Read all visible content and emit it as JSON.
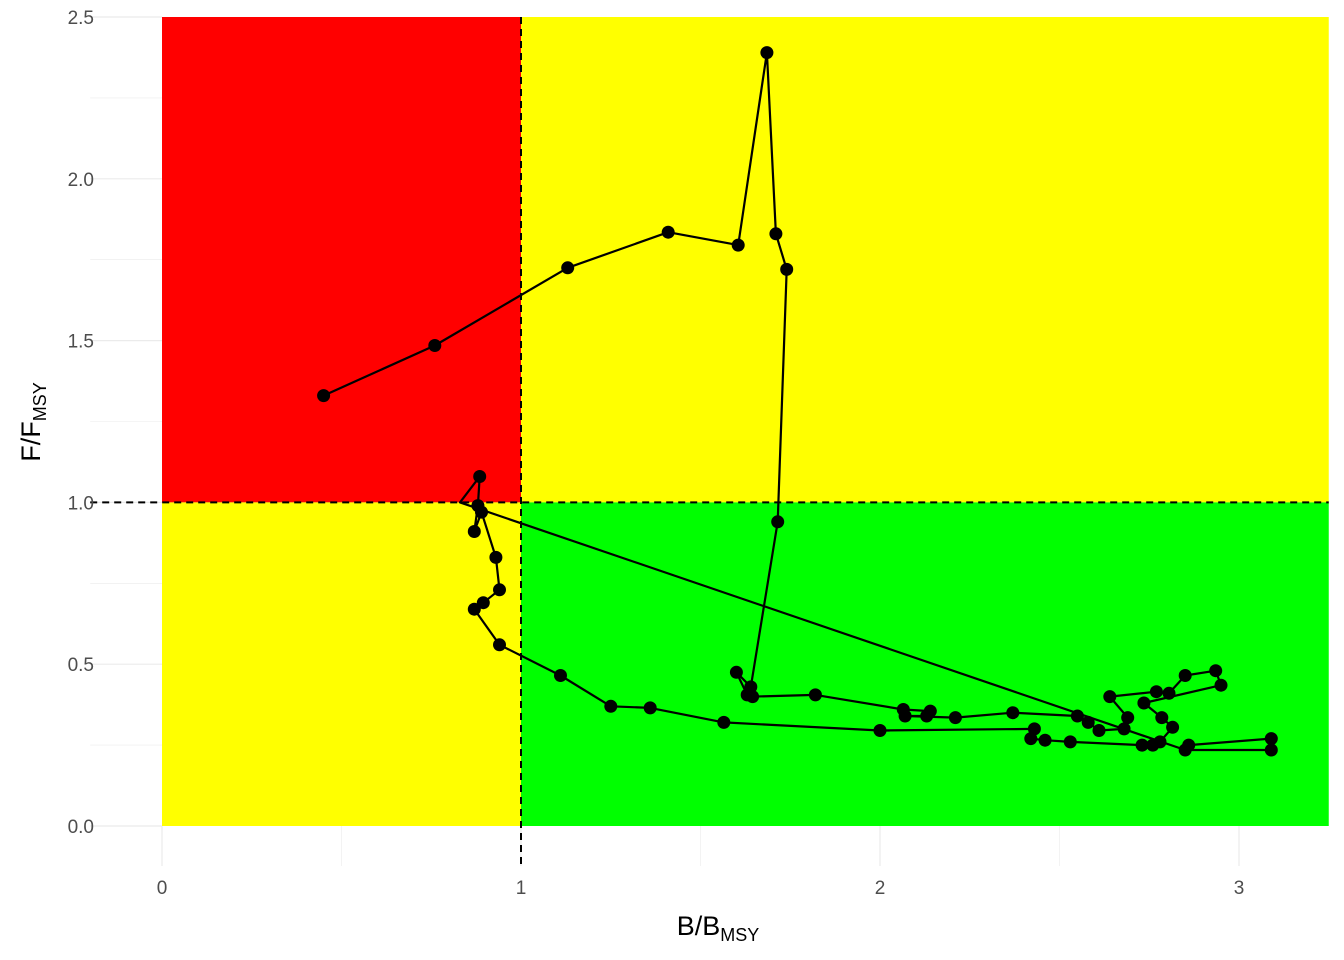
{
  "chart_data": {
    "type": "line",
    "title": "",
    "xlabel": {
      "main": "B/B",
      "sub": "MSY"
    },
    "ylabel": {
      "main": "F/F",
      "sub": "MSY"
    },
    "xlim": [
      -0.2,
      3.25
    ],
    "ylim": [
      0,
      2.5
    ],
    "xticks": [
      0,
      1,
      2,
      3
    ],
    "xtick_labels": [
      "0",
      "1",
      "2",
      "3"
    ],
    "yticks": [
      0,
      0.5,
      1,
      1.5,
      2,
      2.5
    ],
    "ytick_labels": [
      "0.0",
      "0.5",
      "1.0",
      "1.5",
      "2.0",
      "2.5"
    ],
    "reference_lines": {
      "x": 1,
      "y": 1,
      "style": "dashed"
    },
    "quadrants": [
      {
        "name": "overfished-and-overfishing",
        "x": [
          0,
          1
        ],
        "y": [
          1,
          2.5
        ],
        "color": "#ff0000"
      },
      {
        "name": "not-overfished-overfishing",
        "x": [
          1,
          3.25
        ],
        "y": [
          1,
          2.5
        ],
        "color": "#ffff00"
      },
      {
        "name": "overfished-not-overfishing",
        "x": [
          0,
          1
        ],
        "y": [
          0,
          1
        ],
        "color": "#ffff00"
      },
      {
        "name": "healthy",
        "x": [
          1,
          3.25
        ],
        "y": [
          0,
          1
        ],
        "color": "#00ff00"
      }
    ],
    "grid": true,
    "legend": "none",
    "series": [
      {
        "color": "#000000",
        "points": [
          [
            0.45,
            1.33
          ],
          [
            0.76,
            1.485
          ],
          [
            1.13,
            1.725
          ],
          [
            1.41,
            1.835
          ],
          [
            1.605,
            1.795
          ],
          [
            1.685,
            2.39
          ],
          [
            1.71,
            1.83
          ],
          [
            1.74,
            1.72
          ],
          [
            1.715,
            0.94
          ],
          [
            1.64,
            0.43
          ],
          [
            1.6,
            0.475
          ],
          [
            1.63,
            0.405
          ],
          [
            1.645,
            0.4
          ],
          [
            1.82,
            0.405
          ],
          [
            2.065,
            0.36
          ],
          [
            2.14,
            0.355
          ],
          [
            2.13,
            0.34
          ],
          [
            2.07,
            0.34
          ],
          [
            2.21,
            0.335
          ],
          [
            2.37,
            0.35
          ],
          [
            2.55,
            0.34
          ],
          [
            2.58,
            0.32
          ],
          [
            2.61,
            0.295
          ],
          [
            2.68,
            0.3
          ],
          [
            2.69,
            0.335
          ],
          [
            2.64,
            0.4
          ],
          [
            2.77,
            0.415
          ],
          [
            2.805,
            0.41
          ],
          [
            2.85,
            0.465
          ],
          [
            2.935,
            0.48
          ],
          [
            2.95,
            0.435
          ],
          [
            2.735,
            0.38
          ],
          [
            2.785,
            0.335
          ],
          [
            2.815,
            0.305
          ],
          [
            2.78,
            0.26
          ],
          [
            2.76,
            0.25
          ],
          [
            2.73,
            0.25
          ],
          [
            2.53,
            0.26
          ],
          [
            2.46,
            0.265
          ],
          [
            2.42,
            0.27
          ],
          [
            2.43,
            0.3
          ],
          [
            2.0,
            0.295
          ],
          [
            1.565,
            0.32
          ],
          [
            1.36,
            0.365
          ],
          [
            1.25,
            0.37
          ],
          [
            1.11,
            0.465
          ],
          [
            0.94,
            0.56
          ],
          [
            0.87,
            0.67
          ],
          [
            0.895,
            0.69
          ],
          [
            0.94,
            0.73
          ],
          [
            0.93,
            0.83
          ],
          [
            0.89,
            0.97
          ],
          [
            0.87,
            0.91
          ],
          [
            0.88,
            0.99
          ],
          [
            0.885,
            1.08
          ],
          [
            0.83,
            1.0
          ],
          [
            2.85,
            0.235
          ],
          [
            3.09,
            0.235
          ],
          [
            3.09,
            0.27
          ],
          [
            2.86,
            0.25
          ]
        ],
        "markers_omitted_indices": [
          55
        ]
      }
    ]
  }
}
